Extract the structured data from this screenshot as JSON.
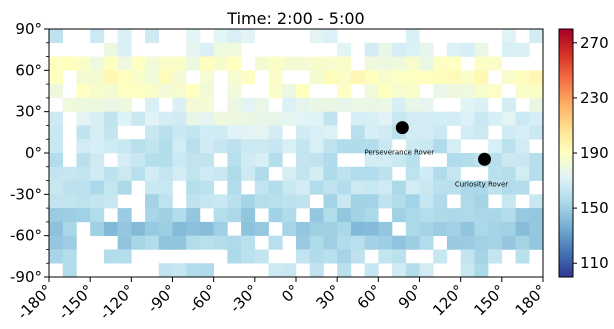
{
  "chart_data": {
    "type": "heatmap",
    "title": "Time: 2:00 - 5:00",
    "xlabel": "",
    "ylabel": "",
    "xlim": [
      -180,
      180
    ],
    "ylim": [
      -90,
      90
    ],
    "x_ticks": [
      -180,
      -150,
      -120,
      -90,
      -60,
      -30,
      0,
      30,
      60,
      90,
      120,
      150,
      180
    ],
    "x_tick_labels": [
      "-180°",
      "-150°",
      "-120°",
      "-90°",
      "-60°",
      "-30°",
      "0°",
      "30°",
      "60°",
      "90°",
      "120°",
      "150°",
      "180°"
    ],
    "y_ticks": [
      -90,
      -60,
      -30,
      0,
      30,
      60,
      90
    ],
    "y_tick_labels": [
      "-90°",
      "-60°",
      "-30°",
      "0°",
      "30°",
      "60°",
      "90°"
    ],
    "cell_size_deg": 10,
    "missing_fraction": 0.16,
    "colorbar": {
      "range": [
        100,
        280
      ],
      "ticks": [
        110,
        150,
        190,
        230,
        270
      ],
      "tick_labels": [
        "110",
        "150",
        "190",
        "230",
        "270"
      ],
      "colormap": [
        "#313695",
        "#4575b4",
        "#74add1",
        "#abd9e9",
        "#e0f3f8",
        "#ffffbf",
        "#fee090",
        "#fdae61",
        "#f46d43",
        "#d73027",
        "#a50026"
      ]
    },
    "markers": [
      {
        "name": "Perseverance Rover",
        "lon": 77.5,
        "lat": 18.4
      },
      {
        "name": "Curiosity Rover",
        "lon": 137.4,
        "lat": -4.6
      }
    ],
    "grid": false,
    "legend": "none"
  }
}
